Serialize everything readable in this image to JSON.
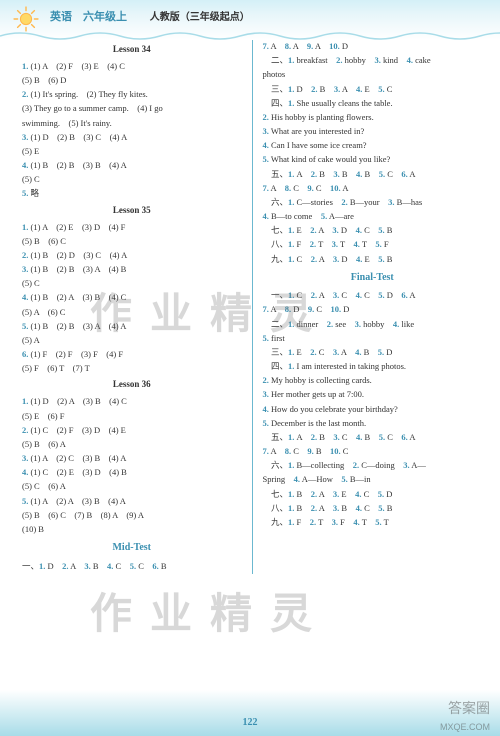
{
  "header": {
    "title": "英语　六年级上",
    "subtitle": "人教版（三年级起点）"
  },
  "page_number": "122",
  "watermarks": {
    "main": "作业精灵",
    "corner1": "答案圈",
    "corner2": "MXQE.COM"
  },
  "lessons_left": [
    {
      "title": "Lesson 34",
      "lines": [
        {
          "t": "<n>1.</n> (1) A　(2) F　(3) E　(4) C"
        },
        {
          "t": "(5) B　(6) D"
        },
        {
          "t": "<n>2.</n> (1) It's spring.　(2) They fly kites."
        },
        {
          "t": "(3) They go to a summer camp.　(4) I go"
        },
        {
          "t": "swimming.　(5) It's rainy."
        },
        {
          "t": "<n>3.</n> (1) D　(2) B　(3) C　(4) A"
        },
        {
          "t": "(5) E"
        },
        {
          "t": "<n>4.</n> (1) B　(2) B　(3) B　(4) A"
        },
        {
          "t": "(5) C"
        },
        {
          "t": "<n>5.</n> 略"
        }
      ]
    },
    {
      "title": "Lesson 35",
      "lines": [
        {
          "t": "<n>1.</n> (1) A　(2) E　(3) D　(4) F"
        },
        {
          "t": "(5) B　(6) C"
        },
        {
          "t": "<n>2.</n> (1) B　(2) D　(3) C　(4) A"
        },
        {
          "t": "<n>3.</n> (1) B　(2) B　(3) A　(4) B"
        },
        {
          "t": "(5) C"
        },
        {
          "t": "<n>4.</n> (1) B　(2) A　(3) B　(4) C"
        },
        {
          "t": "(5) A　(6) C"
        },
        {
          "t": "<n>5.</n> (1) B　(2) B　(3) A　(4) A"
        },
        {
          "t": "(5) A"
        },
        {
          "t": "<n>6.</n> (1) F　(2) F　(3) F　(4) F"
        },
        {
          "t": "(5) F　(6) T　(7) T"
        }
      ]
    },
    {
      "title": "Lesson 36",
      "lines": [
        {
          "t": "<n>1.</n> (1) D　(2) A　(3) B　(4) C"
        },
        {
          "t": "(5) E　(6) F"
        },
        {
          "t": "<n>2.</n> (1) C　(2) F　(3) D　(4) E"
        },
        {
          "t": "(5) B　(6) A"
        },
        {
          "t": "<n>3.</n> (1) A　(2) C　(3) B　(4) A"
        },
        {
          "t": "<n>4.</n> (1) C　(2) E　(3) D　(4) B"
        },
        {
          "t": "(5) C　(6) A"
        },
        {
          "t": "<n>5.</n> (1) A　(2) A　(3) B　(4) A"
        },
        {
          "t": "(5) B　(6) C　(7) B　(8) A　(9) A"
        },
        {
          "t": "(10) B"
        }
      ]
    },
    {
      "title_mid": "Mid-Test",
      "lines": [
        {
          "t": "一、<n>1.</n> D　<n>2.</n> A　<n>3.</n> B　<n>4.</n> C　<n>5.</n> C　<n>6.</n> B"
        }
      ]
    }
  ],
  "lines_right": [
    {
      "t": "<n>7.</n> A　<n>8.</n> A　<n>9.</n> A　<n>10.</n> D"
    },
    {
      "t": "　二、<n>1.</n> breakfast　<n>2.</n> hobby　<n>3.</n> kind　<n>4.</n> cake"
    },
    {
      "t": "photos"
    },
    {
      "t": "　三、<n>1.</n> D　<n>2.</n> B　<n>3.</n> A　<n>4.</n> E　<n>5.</n> C"
    },
    {
      "t": "　四、<n>1.</n> She usually cleans the table."
    },
    {
      "t": "<n>2.</n> His hobby is planting flowers."
    },
    {
      "t": "<n>3.</n> What are you interested in?"
    },
    {
      "t": "<n>4.</n> Can I have some ice cream?"
    },
    {
      "t": "<n>5.</n> What kind of cake would you like?"
    },
    {
      "t": "　五、<n>1.</n> A　<n>2.</n> B　<n>3.</n> B　<n>4.</n> B　<n>5.</n> C　<n>6.</n> A"
    },
    {
      "t": "<n>7.</n> A　<n>8.</n> C　<n>9.</n> C　<n>10.</n> A"
    },
    {
      "t": "　六、<n>1.</n> C—stories　<n>2.</n> B—your　<n>3.</n> B—has"
    },
    {
      "t": "<n>4.</n> B—to come　<n>5.</n> A—are"
    },
    {
      "t": "　七、<n>1.</n> E　<n>2.</n> A　<n>3.</n> D　<n>4.</n> C　<n>5.</n> B"
    },
    {
      "t": "　八、<n>1.</n> F　<n>2.</n> T　<n>3.</n> T　<n>4.</n> T　<n>5.</n> F"
    },
    {
      "t": "　九、<n>1.</n> C　<n>2.</n> A　<n>3.</n> D　<n>4.</n> E　<n>5.</n> B"
    },
    {
      "title_mid": "Final-Test"
    },
    {
      "t": "　一、<n>1.</n> C　<n>2.</n> A　<n>3.</n> C　<n>4.</n> C　<n>5.</n> D　<n>6.</n> A"
    },
    {
      "t": "<n>7.</n> A　<n>8.</n> D　<n>9.</n> C　<n>10.</n> D"
    },
    {
      "t": "　二、<n>1.</n> dinner　<n>2.</n> see　<n>3.</n> hobby　<n>4.</n> like"
    },
    {
      "t": "<n>5.</n> first"
    },
    {
      "t": "　三、<n>1.</n> E　<n>2.</n> C　<n>3.</n> A　<n>4.</n> B　<n>5.</n> D"
    },
    {
      "t": "　四、<n>1.</n> I am interested in taking photos."
    },
    {
      "t": "<n>2.</n> My hobby is collecting cards."
    },
    {
      "t": "<n>3.</n> Her mother gets up at 7:00."
    },
    {
      "t": "<n>4.</n> How do you celebrate your birthday?"
    },
    {
      "t": "<n>5.</n> December is the last month."
    },
    {
      "t": "　五、<n>1.</n> A　<n>2.</n> B　<n>3.</n> C　<n>4.</n> B　<n>5.</n> C　<n>6.</n> A"
    },
    {
      "t": "<n>7.</n> A　<n>8.</n> C　<n>9.</n> B　<n>10.</n> C"
    },
    {
      "t": "　六、<n>1.</n> B—collecting　<n>2.</n> C—doing　<n>3.</n> A—"
    },
    {
      "t": "Spring　<n>4.</n> A—How　<n>5.</n> B—in"
    },
    {
      "t": "　七、<n>1.</n> B　<n>2.</n> A　<n>3.</n> E　<n>4.</n> C　<n>5.</n> D"
    },
    {
      "t": "　八、<n>1.</n> B　<n>2.</n> A　<n>3.</n> B　<n>4.</n> C　<n>5.</n> B"
    },
    {
      "t": "　九、<n>1.</n> F　<n>2.</n> T　<n>3.</n> F　<n>4.</n> T　<n>5.</n> T"
    }
  ]
}
